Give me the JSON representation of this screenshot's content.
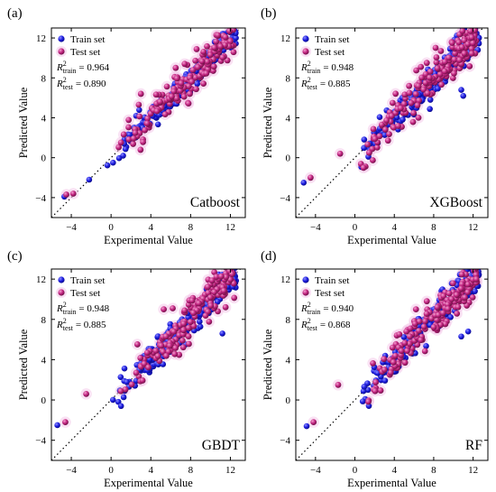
{
  "colors": {
    "train": "#1d1de0",
    "train_dark": "#0b0b8a",
    "train_light": "#8f8fff",
    "test": "#c0237f",
    "test_dark": "#6f0f46",
    "test_light": "#f6a0d2",
    "test_halo": "#f4c8ea",
    "axis": "#000000"
  },
  "chart_data": [
    {
      "type": "scatter",
      "panel_label": "(a)",
      "model": "Catboost",
      "xlabel": "Experimental Value",
      "ylabel": "Predicted Value",
      "xlim": [
        -6,
        13.5
      ],
      "ylim": [
        -6,
        13
      ],
      "xticks": [
        "-4",
        "0",
        "4",
        "8",
        "12"
      ],
      "yticks": [
        "-4",
        "0",
        "4",
        "8",
        "12"
      ],
      "legend": {
        "train": "Train set",
        "test": "Test set"
      },
      "r2": {
        "train_label": "R",
        "train_sub": "train",
        "train_value": "= 0.964",
        "test_label": "R",
        "test_sub": "test",
        "test_value": "= 0.890"
      },
      "series": [
        {
          "name": "Train set",
          "noise": 0.55,
          "seed": 11
        },
        {
          "name": "Test set",
          "noise": 0.85,
          "seed": 17
        }
      ],
      "outliers_test": [
        [
          -4.5,
          -3.7
        ],
        [
          -3.8,
          -3.6
        ],
        [
          6.5,
          9.0
        ],
        [
          7.4,
          9.4
        ],
        [
          3.0,
          6.4
        ]
      ],
      "outliers_train": [
        [
          -4.7,
          -3.9
        ],
        [
          -2.2,
          -2.2
        ],
        [
          0.2,
          -0.5
        ]
      ]
    },
    {
      "type": "scatter",
      "panel_label": "(b)",
      "model": "XGBoost",
      "xlabel": "Experimental Value",
      "ylabel": "Predicted Value",
      "xlim": [
        -6,
        13.5
      ],
      "ylim": [
        -6,
        13
      ],
      "xticks": [
        "-4",
        "0",
        "4",
        "8",
        "12"
      ],
      "yticks": [
        "-4",
        "0",
        "4",
        "8",
        "12"
      ],
      "legend": {
        "train": "Train set",
        "test": "Test set"
      },
      "r2": {
        "train_label": "R",
        "train_sub": "train",
        "train_value": "= 0.948",
        "test_label": "R",
        "test_sub": "test",
        "test_value": "= 0.885"
      },
      "series": [
        {
          "name": "Train set",
          "noise": 0.75,
          "seed": 23
        },
        {
          "name": "Test set",
          "noise": 0.95,
          "seed": 29
        }
      ],
      "outliers_test": [
        [
          -4.5,
          -2.0
        ],
        [
          -1.5,
          0.4
        ],
        [
          6.7,
          9.1
        ],
        [
          7.3,
          9.5
        ]
      ],
      "outliers_train": [
        [
          -5.2,
          -2.5
        ],
        [
          11.0,
          6.2
        ],
        [
          10.8,
          6.8
        ]
      ]
    },
    {
      "type": "scatter",
      "panel_label": "(c)",
      "model": "GBDT",
      "xlabel": "Experimental Value",
      "ylabel": "Predicted Value",
      "xlim": [
        -6,
        13.5
      ],
      "ylim": [
        -6,
        13
      ],
      "xticks": [
        "-4",
        "0",
        "4",
        "8",
        "12"
      ],
      "yticks": [
        "-4",
        "0",
        "4",
        "8",
        "12"
      ],
      "legend": {
        "train": "Train set",
        "test": "Test set"
      },
      "r2": {
        "train_label": "R",
        "train_sub": "train",
        "train_value": "= 0.948",
        "test_label": "R",
        "test_sub": "test",
        "test_value": "= 0.885"
      },
      "series": [
        {
          "name": "Train set",
          "noise": 0.75,
          "seed": 31
        },
        {
          "name": "Test set",
          "noise": 0.95,
          "seed": 37
        }
      ],
      "outliers_test": [
        [
          -4.6,
          -2.2
        ],
        [
          -2.5,
          0.6
        ],
        [
          5.3,
          9.0
        ],
        [
          6.2,
          9.1
        ]
      ],
      "outliers_train": [
        [
          -5.4,
          -2.5
        ],
        [
          1.0,
          -0.6
        ],
        [
          11.2,
          6.6
        ]
      ]
    },
    {
      "type": "scatter",
      "panel_label": "(d)",
      "model": "RF",
      "xlabel": "Experimental Value",
      "ylabel": "Predicted Value",
      "xlim": [
        -6,
        13.5
      ],
      "ylim": [
        -6,
        13
      ],
      "xticks": [
        "-4",
        "0",
        "4",
        "8",
        "12"
      ],
      "yticks": [
        "-4",
        "0",
        "4",
        "8",
        "12"
      ],
      "legend": {
        "train": "Train set",
        "test": "Test set"
      },
      "r2": {
        "train_label": "R",
        "train_sub": "train",
        "train_value": "= 0.940",
        "test_label": "R",
        "test_sub": "test",
        "test_value": "= 0.868"
      },
      "series": [
        {
          "name": "Train set",
          "noise": 0.8,
          "seed": 41
        },
        {
          "name": "Test set",
          "noise": 1.0,
          "seed": 43
        }
      ],
      "outliers_test": [
        [
          -4.2,
          -2.2
        ],
        [
          -1.7,
          1.5
        ],
        [
          6.2,
          9.0
        ],
        [
          7.3,
          9.8
        ]
      ],
      "outliers_train": [
        [
          -4.9,
          -2.6
        ],
        [
          10.8,
          6.3
        ],
        [
          11.5,
          6.8
        ]
      ]
    }
  ]
}
